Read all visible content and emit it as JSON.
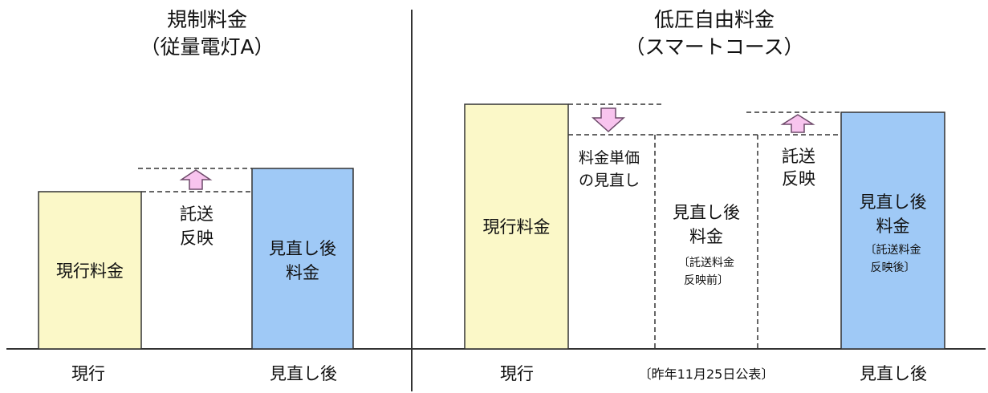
{
  "left": {
    "title_line1": "規制料金",
    "title_line2": "（従量電灯A）",
    "bar_current_label": "現行料金",
    "bar_revised_label_line1": "見直し後",
    "bar_revised_label_line2": "料金",
    "delta_label_line1": "託送",
    "delta_label_line2": "反映",
    "axis_current": "現行",
    "axis_revised": "見直し後"
  },
  "right": {
    "title_line1": "低圧自由料金",
    "title_line2": "（スマートコース）",
    "bar_current_label": "現行料金",
    "unit_price_label_line1": "料金単価",
    "unit_price_label_line2": "の見直し",
    "mid_label_line1": "見直し後",
    "mid_label_line2": "料金",
    "mid_note_line1": "〔託送料金",
    "mid_note_line2": "反映前〕",
    "delta_label_line1": "託送",
    "delta_label_line2": "反映",
    "bar_revised_label_line1": "見直し後",
    "bar_revised_label_line2": "料金",
    "bar_revised_note_line1": "〔託送料金",
    "bar_revised_note_line2": "反映後〕",
    "axis_current": "現行",
    "axis_footnote": "〔昨年11月25日公表〕",
    "axis_revised": "見直し後"
  },
  "colors": {
    "current_bar": "#fbf8c8",
    "revised_bar": "#9fc9f6",
    "arrow_fill": "#f8c4ee",
    "arrow_stroke": "#6d4a6a"
  }
}
